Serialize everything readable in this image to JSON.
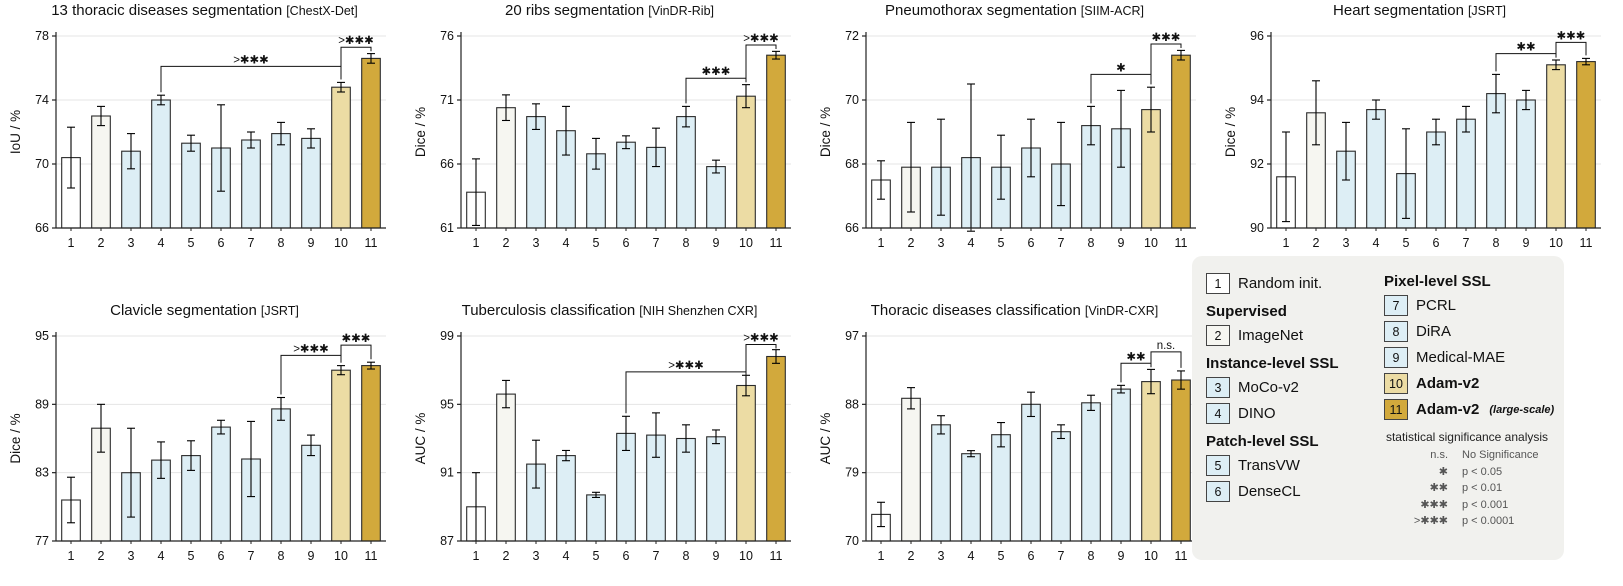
{
  "colors": {
    "bars": [
      "#ffffff",
      "#f6f6f1",
      "#ddeef5",
      "#ddeef5",
      "#ddeef5",
      "#ddeef5",
      "#ddeef5",
      "#ddeef5",
      "#ddeef5",
      "#ecdca4",
      "#d2a93c"
    ],
    "bar_border": "#2a2a2a",
    "grid": "#e4e4e4",
    "axis": "#222222"
  },
  "chart_data": [
    {
      "id": "chestx-det",
      "type": "bar",
      "title": "13 thoracic diseases segmentation",
      "dataset": "[ChestX-Det]",
      "ylabel": "IoU / %",
      "ylim": [
        66,
        78
      ],
      "yticks": [
        66,
        70,
        74,
        78
      ],
      "categories": [
        "1",
        "2",
        "3",
        "4",
        "5",
        "6",
        "7",
        "8",
        "9",
        "10",
        "11"
      ],
      "values": [
        70.4,
        73.0,
        70.8,
        74.0,
        71.3,
        71.0,
        71.5,
        71.9,
        71.6,
        74.8,
        76.6
      ],
      "errors": [
        1.9,
        0.6,
        1.1,
        0.3,
        0.5,
        2.7,
        0.5,
        0.7,
        0.6,
        0.3,
        0.3
      ],
      "significance": [
        {
          "from": 4,
          "to": 10,
          "label": ">✱✱✱",
          "y": 76.1
        },
        {
          "from": 10,
          "to": 11,
          "label": ">✱✱✱",
          "y": 77.3
        }
      ]
    },
    {
      "id": "vindr-rib",
      "type": "bar",
      "title": "20 ribs segmentation",
      "dataset": "[VinDR-Rib]",
      "ylabel": "Dice / %",
      "ylim": [
        61,
        76
      ],
      "yticks": [
        61,
        66,
        71,
        76
      ],
      "categories": [
        "1",
        "2",
        "3",
        "4",
        "5",
        "6",
        "7",
        "8",
        "9",
        "10",
        "11"
      ],
      "values": [
        63.8,
        70.4,
        69.7,
        68.6,
        66.8,
        67.7,
        67.3,
        69.7,
        65.8,
        71.3,
        74.5
      ],
      "errors": [
        2.6,
        1.0,
        1.0,
        1.9,
        1.2,
        0.5,
        1.5,
        0.8,
        0.5,
        0.9,
        0.3
      ],
      "significance": [
        {
          "from": 8,
          "to": 10,
          "label": "✱✱✱",
          "y": 72.7
        },
        {
          "from": 10,
          "to": 11,
          "label": ">✱✱✱",
          "y": 75.3
        }
      ]
    },
    {
      "id": "siim-acr",
      "type": "bar",
      "title": "Pneumothorax segmentation",
      "dataset": "[SIIM-ACR]",
      "ylabel": "Dice / %",
      "ylim": [
        66,
        72
      ],
      "yticks": [
        66,
        68,
        70,
        72
      ],
      "categories": [
        "1",
        "2",
        "3",
        "4",
        "5",
        "6",
        "7",
        "8",
        "9",
        "10",
        "11"
      ],
      "values": [
        67.5,
        67.9,
        67.9,
        68.2,
        67.9,
        68.5,
        68.0,
        69.2,
        69.1,
        69.7,
        71.4
      ],
      "errors": [
        0.6,
        1.4,
        1.5,
        2.3,
        1.0,
        0.9,
        1.3,
        0.6,
        1.2,
        0.7,
        0.15
      ],
      "significance": [
        {
          "from": 8,
          "to": 10,
          "label": "✱",
          "y": 70.8
        },
        {
          "from": 10,
          "to": 11,
          "label": "✱✱✱",
          "y": 71.75
        }
      ]
    },
    {
      "id": "jsrt-heart",
      "type": "bar",
      "title": "Heart segmentation",
      "dataset": "[JSRT]",
      "ylabel": "Dice / %",
      "ylim": [
        90,
        96
      ],
      "yticks": [
        90,
        92,
        94,
        96
      ],
      "categories": [
        "1",
        "2",
        "3",
        "4",
        "5",
        "6",
        "7",
        "8",
        "9",
        "10",
        "11"
      ],
      "values": [
        91.6,
        93.6,
        92.4,
        93.7,
        91.7,
        93.0,
        93.4,
        94.2,
        94.0,
        95.1,
        95.2
      ],
      "errors": [
        1.4,
        1.0,
        0.9,
        0.3,
        1.4,
        0.4,
        0.4,
        0.6,
        0.3,
        0.15,
        0.1
      ],
      "significance": [
        {
          "from": 8,
          "to": 10,
          "label": "✱✱",
          "y": 95.45
        },
        {
          "from": 10,
          "to": 11,
          "label": "✱✱✱",
          "y": 95.8
        }
      ]
    },
    {
      "id": "jsrt-clavicle",
      "type": "bar",
      "title": "Clavicle segmentation",
      "dataset": "[JSRT]",
      "ylabel": "Dice / %",
      "ylim": [
        77,
        95
      ],
      "yticks": [
        77,
        83,
        89,
        95
      ],
      "categories": [
        "1",
        "2",
        "3",
        "4",
        "5",
        "6",
        "7",
        "8",
        "9",
        "10",
        "11"
      ],
      "values": [
        80.6,
        86.9,
        83.0,
        84.1,
        84.5,
        87.0,
        84.2,
        88.6,
        85.4,
        92.0,
        92.4
      ],
      "errors": [
        2.0,
        2.1,
        3.9,
        1.6,
        1.3,
        0.6,
        3.3,
        1.0,
        0.9,
        0.4,
        0.3
      ],
      "significance": [
        {
          "from": 8,
          "to": 10,
          "label": ">✱✱✱",
          "y": 93.3
        },
        {
          "from": 10,
          "to": 11,
          "label": "✱✱✱",
          "y": 94.2
        }
      ]
    },
    {
      "id": "nih-shenzhen-cxr",
      "type": "bar",
      "title": "Tuberculosis classification",
      "dataset": "[NIH Shenzhen CXR]",
      "ylabel": "AUC / %",
      "ylim": [
        87,
        99
      ],
      "yticks": [
        87,
        91,
        95,
        99
      ],
      "categories": [
        "1",
        "2",
        "3",
        "4",
        "5",
        "6",
        "7",
        "8",
        "9",
        "10",
        "11"
      ],
      "values": [
        89.0,
        95.6,
        91.5,
        92.0,
        89.7,
        93.3,
        93.2,
        93.0,
        93.1,
        96.1,
        97.8
      ],
      "errors": [
        2.0,
        0.8,
        1.4,
        0.3,
        0.15,
        1.0,
        1.3,
        0.8,
        0.4,
        0.6,
        0.4
      ],
      "significance": [
        {
          "from": 6,
          "to": 10,
          "label": ">✱✱✱",
          "y": 96.9
        },
        {
          "from": 10,
          "to": 11,
          "label": ">✱✱✱",
          "y": 98.5
        }
      ]
    },
    {
      "id": "vindr-cxr",
      "type": "bar",
      "title": "Thoracic diseases classification",
      "dataset": "[VinDR-CXR]",
      "ylabel": "AUC / %",
      "ylim": [
        70,
        97
      ],
      "yticks": [
        70,
        79,
        88,
        97
      ],
      "categories": [
        "1",
        "2",
        "3",
        "4",
        "5",
        "6",
        "7",
        "8",
        "9",
        "10",
        "11"
      ],
      "values": [
        73.5,
        88.8,
        85.3,
        81.5,
        84.0,
        88.0,
        84.4,
        88.2,
        90.0,
        91.0,
        91.2
      ],
      "errors": [
        1.6,
        1.4,
        1.2,
        0.4,
        1.6,
        1.6,
        0.9,
        1.0,
        0.5,
        1.6,
        1.2
      ],
      "significance": [
        {
          "from": 9,
          "to": 10,
          "label": "✱✱",
          "y": 93.4
        },
        {
          "from": 10,
          "to": 11,
          "label": "n.s.",
          "y": 94.9
        }
      ]
    }
  ],
  "legend": {
    "left": [
      {
        "type": "item",
        "num": "1",
        "label": "Random init."
      },
      {
        "type": "header",
        "label": "Supervised"
      },
      {
        "type": "item",
        "num": "2",
        "label": "ImageNet"
      },
      {
        "type": "header",
        "label": "Instance-level SSL"
      },
      {
        "type": "item",
        "num": "3",
        "label": "MoCo-v2"
      },
      {
        "type": "item",
        "num": "4",
        "label": "DINO"
      },
      {
        "type": "header",
        "label": "Patch-level SSL"
      },
      {
        "type": "item",
        "num": "5",
        "label": "TransVW"
      },
      {
        "type": "item",
        "num": "6",
        "label": "DenseCL"
      }
    ],
    "right": [
      {
        "type": "header",
        "label": "Pixel-level SSL"
      },
      {
        "type": "item",
        "num": "7",
        "label": "PCRL"
      },
      {
        "type": "item",
        "num": "8",
        "label": "DiRA"
      },
      {
        "type": "item",
        "num": "9",
        "label": "Medical-MAE"
      },
      {
        "type": "item",
        "num": "10",
        "label": "Adam-v2",
        "bold": true
      },
      {
        "type": "item",
        "num": "11",
        "label": "Adam-v2",
        "suffix": "(large-scale)",
        "bold": true
      }
    ],
    "significance": {
      "title": "statistical significance analysis",
      "rows": [
        [
          "n.s.",
          "No Significance"
        ],
        [
          "✱",
          "p < 0.05"
        ],
        [
          "✱✱",
          "p < 0.01"
        ],
        [
          "✱✱✱",
          "p < 0.001"
        ],
        [
          ">✱✱✱",
          "p < 0.0001"
        ]
      ]
    }
  }
}
